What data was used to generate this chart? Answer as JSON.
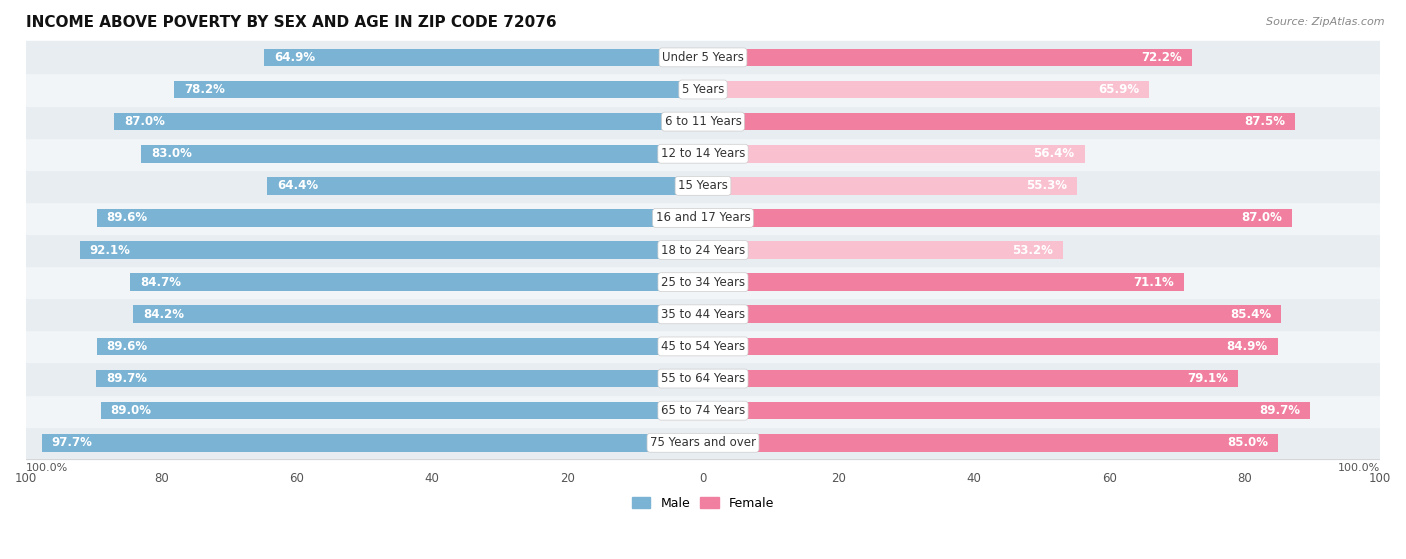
{
  "title": "INCOME ABOVE POVERTY BY SEX AND AGE IN ZIP CODE 72076",
  "source": "Source: ZipAtlas.com",
  "categories": [
    "Under 5 Years",
    "5 Years",
    "6 to 11 Years",
    "12 to 14 Years",
    "15 Years",
    "16 and 17 Years",
    "18 to 24 Years",
    "25 to 34 Years",
    "35 to 44 Years",
    "45 to 54 Years",
    "55 to 64 Years",
    "65 to 74 Years",
    "75 Years and over"
  ],
  "male_values": [
    64.9,
    78.2,
    87.0,
    83.0,
    64.4,
    89.6,
    92.1,
    84.7,
    84.2,
    89.6,
    89.7,
    89.0,
    97.7
  ],
  "female_values": [
    72.2,
    65.9,
    87.5,
    56.4,
    55.3,
    87.0,
    53.2,
    71.1,
    85.4,
    84.9,
    79.1,
    89.7,
    85.0
  ],
  "male_color": "#7ab3d4",
  "female_color": "#f07fa0",
  "female_light_color": "#f9c0d0",
  "row_bg_dark": "#e8edf2",
  "row_bg_light": "#f2f5f8",
  "bar_height": 0.55,
  "title_fontsize": 11,
  "label_fontsize": 8.5,
  "tick_fontsize": 8.5,
  "source_fontsize": 8,
  "legend_fontsize": 9
}
